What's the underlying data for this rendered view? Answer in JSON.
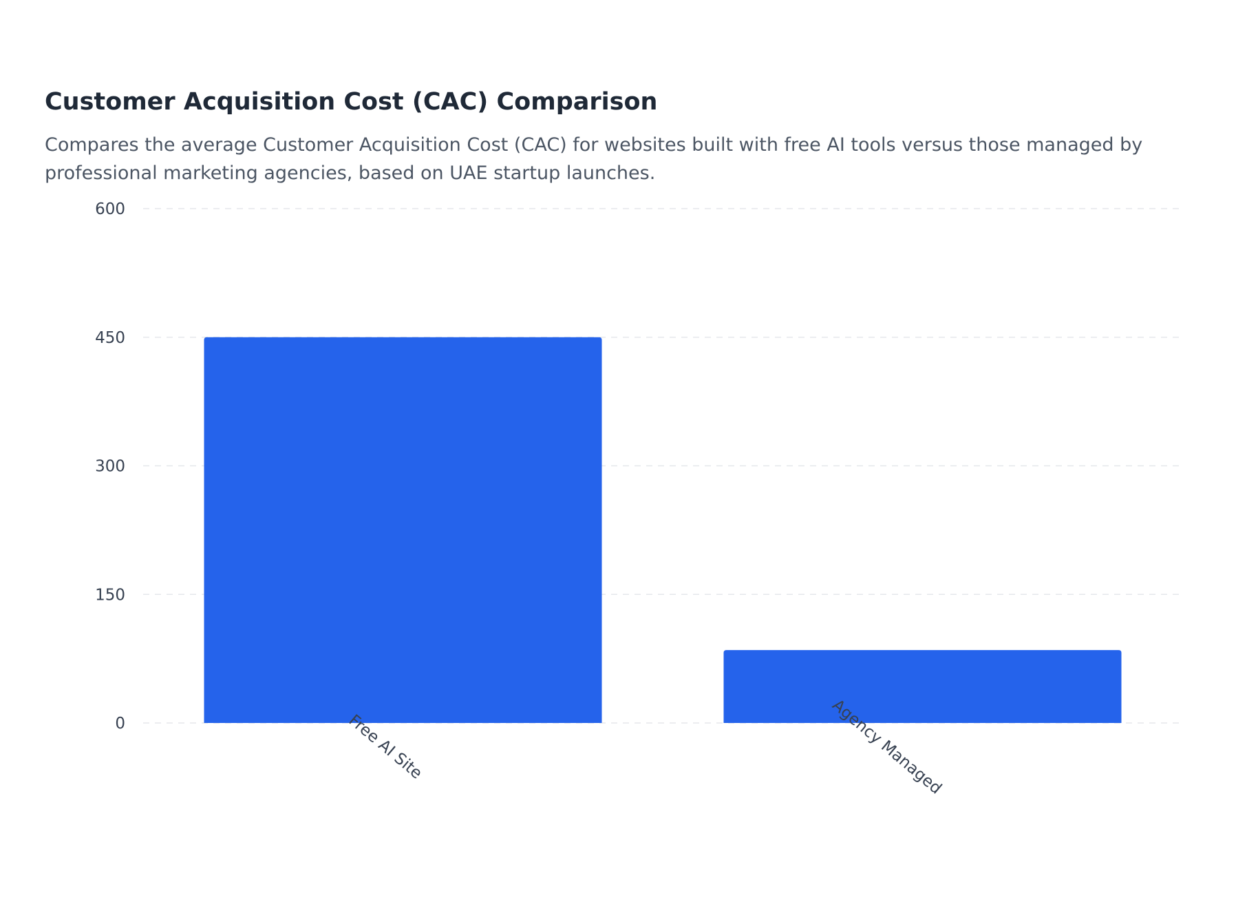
{
  "chart_data": {
    "type": "bar",
    "title": "Customer Acquisition Cost (CAC) Comparison",
    "subtitle": "Compares the average Customer Acquisition Cost (CAC) for websites built with free AI tools versus those managed by professional marketing agencies, based on UAE startup launches.",
    "categories": [
      "Free AI Site",
      "Agency Managed"
    ],
    "values": [
      450,
      85
    ],
    "xlabel": "",
    "ylabel": "",
    "ylim": [
      0,
      600
    ],
    "yticks": [
      0,
      150,
      300,
      450,
      600
    ],
    "grid": true,
    "legend": "none",
    "bar_color": "#2563eb"
  }
}
